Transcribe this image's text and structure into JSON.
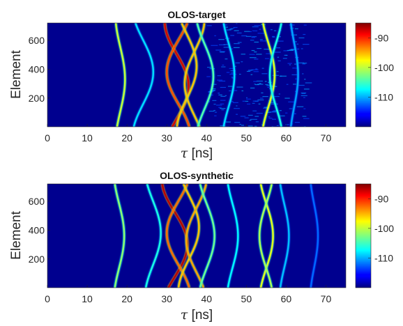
{
  "chart_data": [
    {
      "type": "heatmap",
      "title": "OLOS-target",
      "xlabel_symbol": "τ",
      "xlabel_unit": "[ns]",
      "ylabel": "Element",
      "xlim": [
        0,
        75
      ],
      "ylim": [
        1,
        720
      ],
      "x_ticks": [
        "0",
        "10",
        "20",
        "30",
        "40",
        "50",
        "60",
        "70"
      ],
      "x_tick_values": [
        0,
        10,
        20,
        30,
        40,
        50,
        60,
        70
      ],
      "y_ticks": [
        "200",
        "400",
        "600"
      ],
      "y_tick_values": [
        200,
        400,
        600
      ],
      "colorbar": {
        "ticks": [
          "-90",
          "-100",
          "-110"
        ],
        "tick_values": [
          -90,
          -100,
          -110
        ],
        "range": [
          -120,
          -85
        ],
        "colormap": "jet"
      },
      "background_color": "#00008f",
      "noisy": true,
      "traces": [
        {
          "center_ns": 18.3,
          "amplitude_ns": 1.2,
          "peak_element": 330,
          "level_db": -100
        },
        {
          "center_ns": 24.0,
          "amplitude_ns": 2.6,
          "peak_element": 380,
          "level_db": -108
        },
        {
          "center_ns": 32.5,
          "amplitude_ns": 3.0,
          "peak_element": 280,
          "level_db": -88
        },
        {
          "center_ns": 33.0,
          "amplitude_ns": -3.0,
          "peak_element": 380,
          "level_db": -92
        },
        {
          "center_ns": 35.0,
          "amplitude_ns": 2.5,
          "peak_element": 420,
          "level_db": -96
        },
        {
          "center_ns": 37.0,
          "amplitude_ns": -2.5,
          "peak_element": 300,
          "level_db": -96
        },
        {
          "center_ns": 39.5,
          "amplitude_ns": 2.2,
          "peak_element": 350,
          "level_db": -104
        },
        {
          "center_ns": 45.5,
          "amplitude_ns": 1.5,
          "peak_element": 360,
          "level_db": -108
        },
        {
          "center_ns": 55.5,
          "amplitude_ns": 1.6,
          "peak_element": 360,
          "level_db": -99
        },
        {
          "center_ns": 57.5,
          "amplitude_ns": -1.6,
          "peak_element": 360,
          "level_db": -106
        },
        {
          "center_ns": 62.0,
          "amplitude_ns": 1.0,
          "peak_element": 360,
          "level_db": -110
        }
      ]
    },
    {
      "type": "heatmap",
      "title": "OLOS-synthetic",
      "xlabel_symbol": "τ",
      "xlabel_unit": "[ns]",
      "ylabel": "Element",
      "xlim": [
        0,
        75
      ],
      "ylim": [
        1,
        720
      ],
      "x_ticks": [
        "0",
        "10",
        "20",
        "30",
        "40",
        "50",
        "60",
        "70"
      ],
      "x_tick_values": [
        0,
        10,
        20,
        30,
        40,
        50,
        60,
        70
      ],
      "y_ticks": [
        "200",
        "400",
        "600"
      ],
      "y_tick_values": [
        200,
        400,
        600
      ],
      "colorbar": {
        "ticks": [
          "-90",
          "-100",
          "-110"
        ],
        "tick_values": [
          -90,
          -100,
          -110
        ],
        "range": [
          -120,
          -85
        ],
        "colormap": "jet"
      },
      "background_color": "#00008f",
      "noisy": false,
      "traces": [
        {
          "center_ns": 18.0,
          "amplitude_ns": 1.3,
          "peak_element": 360,
          "level_db": -102
        },
        {
          "center_ns": 26.5,
          "amplitude_ns": 2.0,
          "peak_element": 380,
          "level_db": -106
        },
        {
          "center_ns": 32.0,
          "amplitude_ns": 3.2,
          "peak_element": 300,
          "level_db": -87
        },
        {
          "center_ns": 33.0,
          "amplitude_ns": -3.0,
          "peak_element": 380,
          "level_db": -93
        },
        {
          "center_ns": 35.5,
          "amplitude_ns": 2.6,
          "peak_element": 420,
          "level_db": -96
        },
        {
          "center_ns": 37.5,
          "amplitude_ns": -2.6,
          "peak_element": 330,
          "level_db": -95
        },
        {
          "center_ns": 40.0,
          "amplitude_ns": 2.0,
          "peak_element": 360,
          "level_db": -103
        },
        {
          "center_ns": 46.5,
          "amplitude_ns": 1.4,
          "peak_element": 360,
          "level_db": -107
        },
        {
          "center_ns": 55.0,
          "amplitude_ns": 1.7,
          "peak_element": 360,
          "level_db": -99
        },
        {
          "center_ns": 55.0,
          "amplitude_ns": -1.7,
          "peak_element": 360,
          "level_db": -101
        },
        {
          "center_ns": 59.5,
          "amplitude_ns": 1.2,
          "peak_element": 360,
          "level_db": -109
        },
        {
          "center_ns": 67.0,
          "amplitude_ns": 1.0,
          "peak_element": 360,
          "level_db": -112
        }
      ]
    }
  ]
}
